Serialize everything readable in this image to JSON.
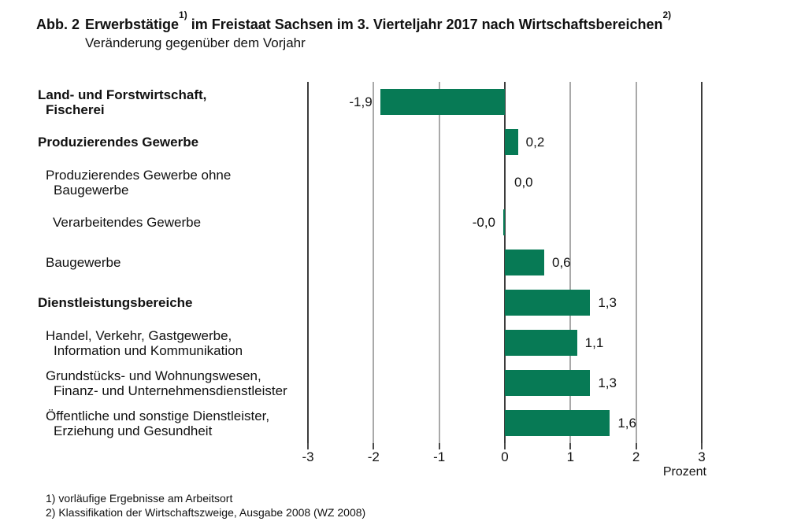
{
  "header": {
    "prefix": "Abb. 2",
    "title_part1": "Erwerbstätige",
    "sup1": "1)",
    "title_part2": " im Freistaat Sachsen im 3. Vierteljahr 2017 nach Wirtschaftsbereichen",
    "sup2": "2)",
    "subtitle": "Veränderung gegenüber dem Vorjahr"
  },
  "footnotes": [
    "1) vorläufige Ergebnisse am Arbeitsort",
    "2) Klassifikation der Wirtschaftszweige, Ausgabe 2008 (WZ 2008)"
  ],
  "colors": {
    "bar": "#077a55",
    "grid": "#a9a9a9",
    "axis": "#3c3c3c",
    "text": "#111111"
  },
  "chart_data": {
    "type": "bar",
    "orientation": "horizontal",
    "title": "Abb. 2 Erwerbstätige1) im Freistaat Sachsen im 3. Vierteljahr 2017 nach Wirtschaftsbereichen2)",
    "subtitle": "Veränderung gegenüber dem Vorjahr",
    "xlabel": "Prozent",
    "xlim": [
      -3,
      3
    ],
    "grid": true,
    "xticks": [
      {
        "label": "-3",
        "value": -3
      },
      {
        "label": "-2",
        "value": -2
      },
      {
        "label": "-1",
        "value": -1
      },
      {
        "label": "0",
        "value": 0
      },
      {
        "label": "1",
        "value": 1
      },
      {
        "label": "2",
        "value": 2
      },
      {
        "label": "3",
        "value": 3
      }
    ],
    "rows": [
      {
        "lines": [
          "Land- und Forstwirtschaft,",
          "Fischerei"
        ],
        "bold": true,
        "indent": 0,
        "value": -1.9,
        "value_label": "-1,9"
      },
      {
        "lines": [
          "Produzierendes Gewerbe"
        ],
        "bold": true,
        "indent": 0,
        "value": 0.2,
        "value_label": "0,2"
      },
      {
        "lines": [
          "Produzierendes Gewerbe ohne",
          "Baugewerbe"
        ],
        "bold": false,
        "indent": 1,
        "value": 0.0,
        "value_label": "0,0"
      },
      {
        "lines": [
          "Verarbeitendes Gewerbe"
        ],
        "bold": false,
        "indent": 2,
        "value": -0.0,
        "value_label": "-0,0"
      },
      {
        "lines": [
          "Baugewerbe"
        ],
        "bold": false,
        "indent": 1,
        "value": 0.6,
        "value_label": "0,6"
      },
      {
        "lines": [
          "Dienstleistungsbereiche"
        ],
        "bold": true,
        "indent": 0,
        "value": 1.3,
        "value_label": "1,3"
      },
      {
        "lines": [
          "Handel, Verkehr, Gastgewerbe,",
          "Information und Kommunikation"
        ],
        "bold": false,
        "indent": 1,
        "value": 1.1,
        "value_label": "1,1"
      },
      {
        "lines": [
          "Grundstücks- und Wohnungswesen,",
          "Finanz- und Unternehmensdienstleister"
        ],
        "bold": false,
        "indent": 1,
        "value": 1.3,
        "value_label": "1,3"
      },
      {
        "lines": [
          "Öffentliche und sonstige Dienstleister,",
          "Erziehung und Gesundheit"
        ],
        "bold": false,
        "indent": 1,
        "value": 1.6,
        "value_label": "1,6"
      }
    ]
  }
}
